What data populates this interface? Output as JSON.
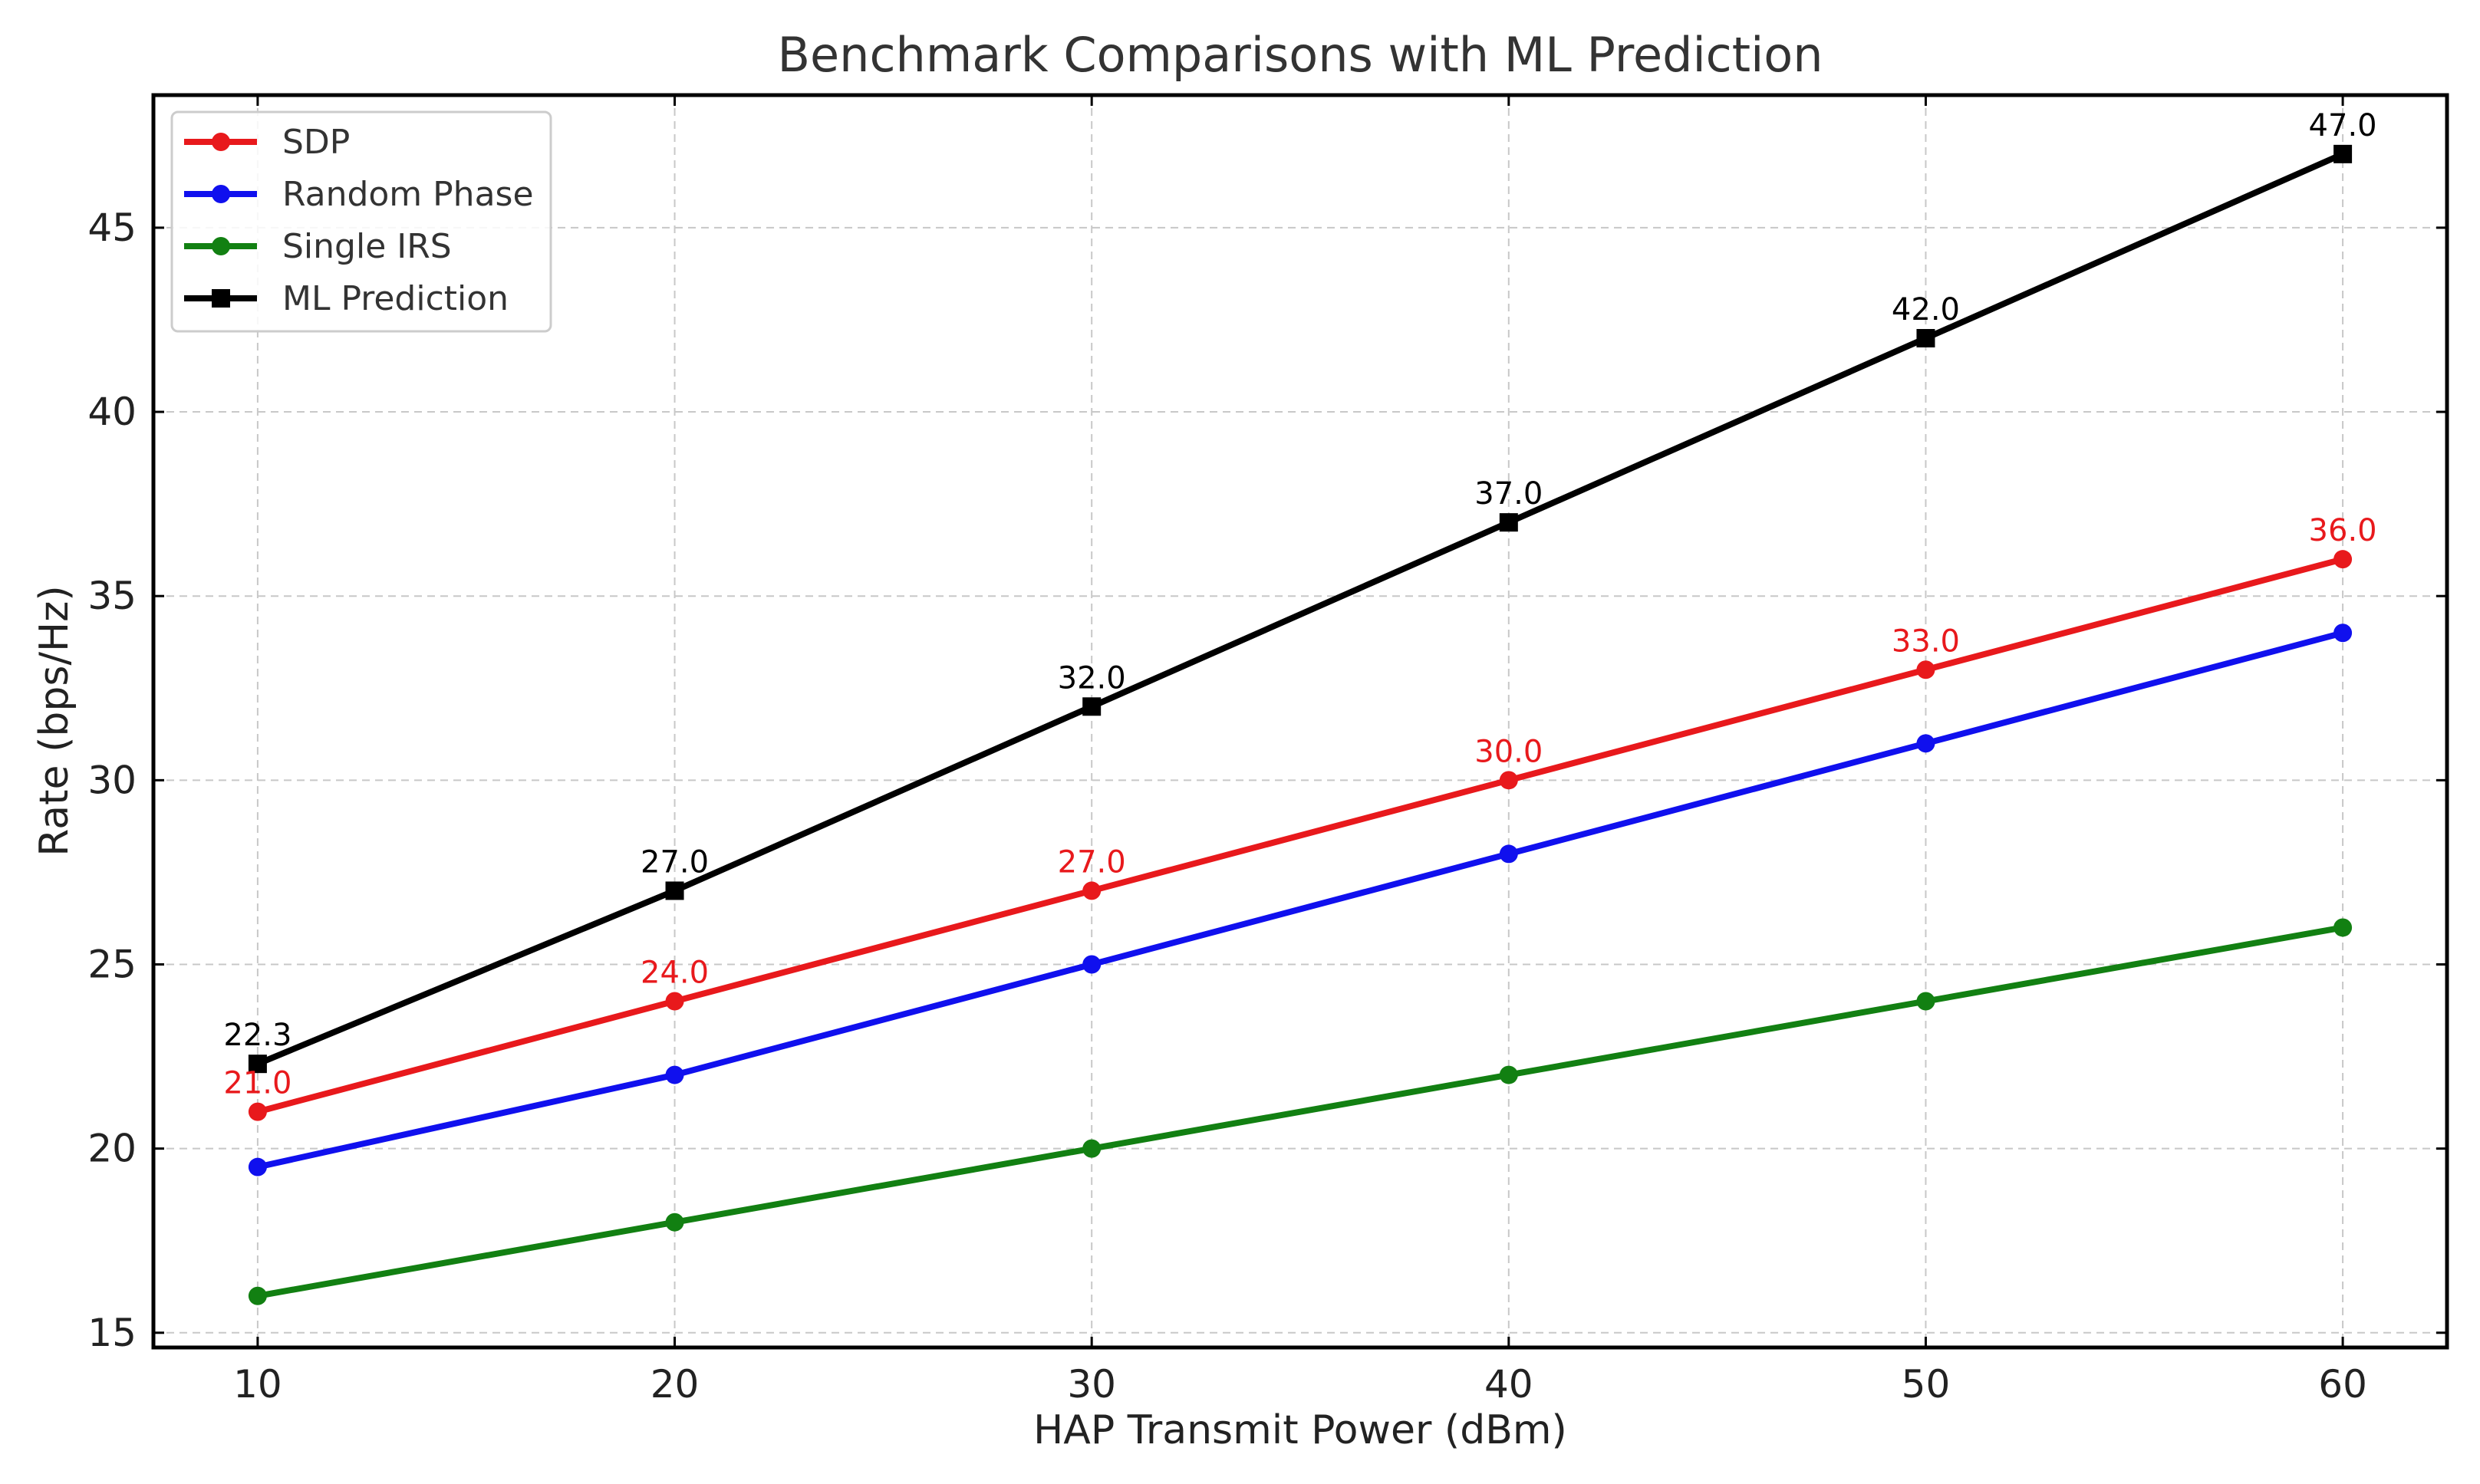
{
  "chart_data": {
    "type": "line",
    "title": "Benchmark Comparisons with ML Prediction",
    "xlabel": "HAP Transmit Power (dBm)",
    "ylabel": "Rate (bps/Hz)",
    "x": [
      10,
      20,
      30,
      40,
      50,
      60
    ],
    "xlim": [
      7.5,
      62.5
    ],
    "ylim": [
      14.6,
      48.6
    ],
    "xticks": [
      10,
      20,
      30,
      40,
      50,
      60
    ],
    "yticks": [
      15,
      20,
      25,
      30,
      35,
      40,
      45
    ],
    "grid": true,
    "legend_position": "top-left",
    "series": [
      {
        "name": "SDP",
        "values": [
          21.0,
          24.0,
          27.0,
          30.0,
          33.0,
          36.0
        ],
        "color": "#e8191c",
        "marker": "circle",
        "data_labels": [
          "21.0",
          "24.0",
          "27.0",
          "30.0",
          "33.0",
          "36.0"
        ]
      },
      {
        "name": "Random Phase",
        "values": [
          19.5,
          22.0,
          25.0,
          28.0,
          31.0,
          34.0
        ],
        "color": "#1010ee",
        "marker": "circle",
        "data_labels": []
      },
      {
        "name": "Single IRS",
        "values": [
          16.0,
          18.0,
          20.0,
          22.0,
          24.0,
          26.0
        ],
        "color": "#128012",
        "marker": "circle",
        "data_labels": []
      },
      {
        "name": "ML Prediction",
        "values": [
          22.3,
          27.0,
          32.0,
          37.0,
          42.0,
          47.0
        ],
        "color": "#000000",
        "marker": "square",
        "data_labels": [
          "22.3",
          "27.0",
          "32.0",
          "37.0",
          "42.0",
          "47.0"
        ]
      }
    ]
  }
}
